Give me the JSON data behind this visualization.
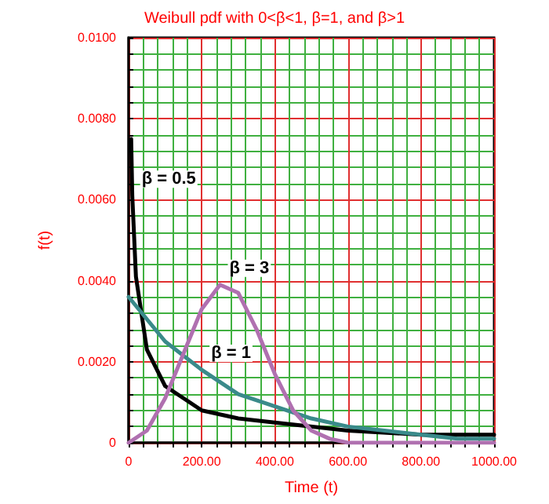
{
  "chart_data": {
    "type": "line",
    "title": "Weibull pdf with 0<β<1, β=1, and β>1",
    "xlabel": "Time (t)",
    "ylabel": "f(t)",
    "xlim": [
      0,
      1000
    ],
    "xticks": [
      0,
      {
        "value": 40,
        "label": null
      },
      {
        "value": 80,
        "label": null
      },
      {
        "value": 120,
        "label": null
      },
      {
        "value": 160,
        "label": null
      },
      {
        "value": 200,
        "label": "200.00"
      },
      {
        "value": 240,
        "label": null
      },
      {
        "value": 280,
        "label": null
      },
      {
        "value": 320,
        "label": null
      },
      {
        "value": 360,
        "label": null
      },
      {
        "value": 400,
        "label": "400.00"
      },
      {
        "value": 440,
        "label": null
      },
      {
        "value": 480,
        "label": null
      },
      {
        "value": 520,
        "label": null
      },
      {
        "value": 560,
        "label": null
      },
      {
        "value": 600,
        "label": "600.00"
      },
      {
        "value": 640,
        "label": null
      },
      {
        "value": 680,
        "label": null
      },
      {
        "value": 720,
        "label": null
      },
      {
        "value": 760,
        "label": null
      },
      {
        "value": 800,
        "label": "800.00"
      },
      {
        "value": 840,
        "label": null
      },
      {
        "value": 880,
        "label": null
      },
      {
        "value": 920,
        "label": null
      },
      {
        "value": 960,
        "label": null
      },
      {
        "value": 1000,
        "label": "1000.00"
      }
    ],
    "ylim": [
      0,
      0.01
    ],
    "yticks": [
      0,
      {
        "value": 0.0004,
        "label": null
      },
      {
        "value": 0.0008,
        "label": null
      },
      {
        "value": 0.0012,
        "label": null
      },
      {
        "value": 0.0016,
        "label": null
      },
      {
        "value": 0.002,
        "label": "0.0020"
      },
      {
        "value": 0.0024,
        "label": null
      },
      {
        "value": 0.0028,
        "label": null
      },
      {
        "value": 0.0032,
        "label": null
      },
      {
        "value": 0.0036,
        "label": null
      },
      {
        "value": 0.004,
        "label": "0.0040"
      },
      {
        "value": 0.0044,
        "label": null
      },
      {
        "value": 0.0048,
        "label": null
      },
      {
        "value": 0.0052,
        "label": null
      },
      {
        "value": 0.0056,
        "label": null
      },
      {
        "value": 0.006,
        "label": "0.0060"
      },
      {
        "value": 0.0064,
        "label": null
      },
      {
        "value": 0.0068,
        "label": null
      },
      {
        "value": 0.0072,
        "label": null
      },
      {
        "value": 0.0076,
        "label": null
      },
      {
        "value": 0.008,
        "label": "0.0080"
      },
      {
        "value": 0.0084,
        "label": null
      },
      {
        "value": 0.0088,
        "label": null
      },
      {
        "value": 0.0092,
        "label": null
      },
      {
        "value": 0.0096,
        "label": null
      },
      {
        "value": 0.01,
        "label": "0.0100"
      }
    ],
    "grid": true,
    "marker": "none",
    "line_style": "solid",
    "series": [
      {
        "color": "#000000",
        "x": [
          7,
          10,
          20,
          50,
          100,
          150,
          200,
          300,
          400,
          600,
          800,
          1000
        ],
        "values": [
          0.0075,
          0.0061,
          0.0041,
          0.0023,
          0.0014,
          0.0011,
          0.0008,
          0.0006,
          0.0005,
          0.0003,
          0.0002,
          0.0002
        ]
      },
      {
        "color": "#3a8a8a",
        "x": [
          0,
          100,
          200,
          300,
          400,
          500,
          600,
          700,
          800,
          900,
          1000
        ],
        "values": [
          0.0036,
          0.0025,
          0.0018,
          0.0012,
          0.0009,
          0.0006,
          0.0004,
          0.0003,
          0.0002,
          0.0001,
          0.0001
        ]
      },
      {
        "color": "#b070b0",
        "x": [
          0,
          50,
          100,
          150,
          200,
          250,
          300,
          350,
          400,
          450,
          500,
          550,
          600,
          700,
          800,
          900,
          1000
        ],
        "values": [
          0,
          0.0003,
          0.0011,
          0.0022,
          0.0033,
          0.0039,
          0.0037,
          0.0028,
          0.0017,
          0.0008,
          0.0003,
          0.0001,
          0,
          0,
          0,
          0,
          0
        ]
      }
    ],
    "annotations": [
      {
        "text": "β = 0.5",
        "x": 10,
        "y": 0.0061
      },
      {
        "text": "β = 3",
        "x": 250,
        "y": 0.0039
      },
      {
        "text": "β = 1",
        "x": 200,
        "y": 0.0018
      }
    ]
  }
}
